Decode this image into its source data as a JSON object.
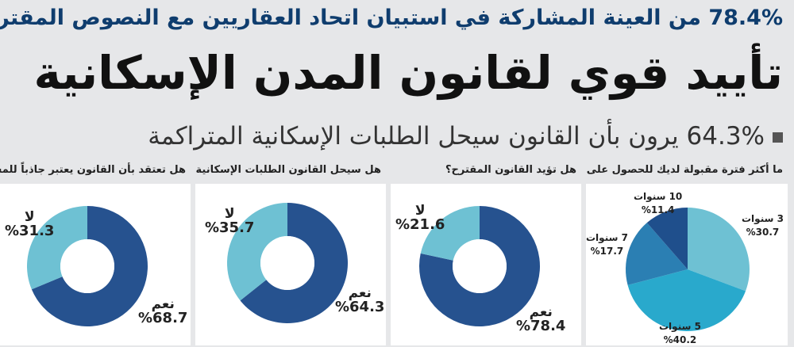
{
  "supertitle": "78.4% من العينة المشاركة في استبيان اتحاد العقاريين مع النصوص المقترحة",
  "headline": "تأييد قوي لقانون المدن الإسكانية",
  "subtitle": "64.3% يرون بأن القانون سيحل الطلبات الإسكانية المتراكمة",
  "colors": {
    "background": "#e6e7e9",
    "dark_blue": "#26528f",
    "light_blue": "#6ec1d3",
    "mid_blue": "#2f8fc0",
    "teal": "#29a9cc",
    "navy": "#1f4f8c"
  },
  "chart_data": [
    {
      "type": "pie",
      "title": "ما أكثر فترة مقبولة لديك للحصول على السكن؟",
      "slices": [
        {
          "label": "3 سنوات",
          "value": 30.7,
          "display": "%30.7",
          "color": "#6ec1d3"
        },
        {
          "label": "5 سنوات",
          "value": 40.2,
          "display": "%40.2",
          "color": "#29a9cc"
        },
        {
          "label": "7 سنوات",
          "value": 17.7,
          "display": "%17.7",
          "color": "#2b7fb3"
        },
        {
          "label": "10 سنوات",
          "value": 11.4,
          "display": "%11.4",
          "color": "#1f4f8c"
        }
      ]
    },
    {
      "type": "pie",
      "donut": true,
      "title": "هل تؤيد القانون المقترح؟",
      "slices": [
        {
          "label": "نعم",
          "value": 78.4,
          "display": "%78.4",
          "color": "#26528f"
        },
        {
          "label": "لا",
          "value": 21.6,
          "display": "%21.6",
          "color": "#6ec1d3"
        }
      ]
    },
    {
      "type": "pie",
      "donut": true,
      "title": "هل سيحل القانون الطلبات الإسكانية المتراكمة بسرعة؟",
      "slices": [
        {
          "label": "نعم",
          "value": 64.3,
          "display": "%64.3",
          "color": "#26528f"
        },
        {
          "label": "لا",
          "value": 35.7,
          "display": "%35.7",
          "color": "#6ec1d3"
        }
      ]
    },
    {
      "type": "pie",
      "donut": true,
      "title": "هل تعتقد بأن القانون يعتبر جاذباً للمستثمر الأجنبي؟",
      "slices": [
        {
          "label": "نعم",
          "value": 68.7,
          "display": "%68.7",
          "color": "#26528f"
        },
        {
          "label": "لا",
          "value": 31.3,
          "display": "%31.3",
          "color": "#6ec1d3"
        }
      ]
    }
  ]
}
